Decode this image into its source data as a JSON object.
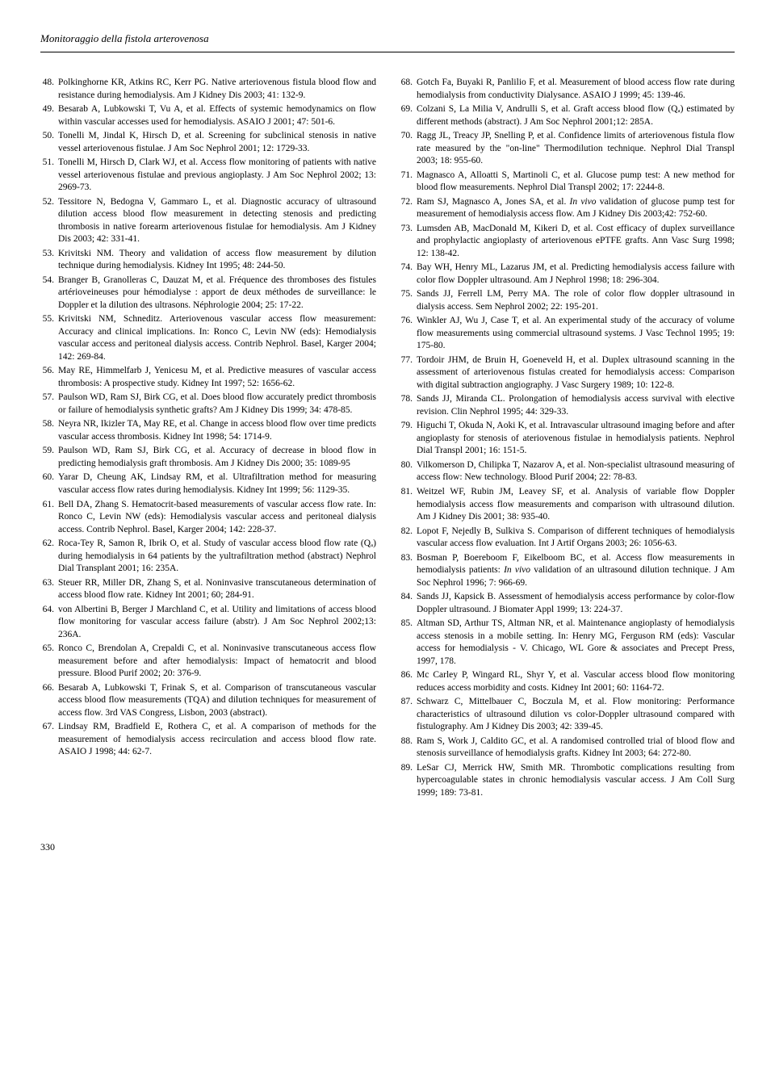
{
  "header_title": "Monitoraggio della fistola arterovenosa",
  "page_number": "330",
  "references_left": [
    {
      "num": "48.",
      "text": "Polkinghorne KR, Atkins RC, Kerr PG. Native arteriovenous fistula blood flow and resistance during hemodialysis. Am J Kidney Dis 2003; 41: 132-9."
    },
    {
      "num": "49.",
      "text": "Besarab A, Lubkowski T, Vu A, et al. Effects of systemic hemodynamics on flow within vascular accesses used for hemodialysis. ASAIO J 2001; 47: 501-6."
    },
    {
      "num": "50.",
      "text": "Tonelli M, Jindal K, Hirsch D, et al. Screening for subclinical stenosis in native vessel arteriovenous fistulae. J Am Soc Nephrol 2001; 12: 1729-33."
    },
    {
      "num": "51.",
      "text": "Tonelli M, Hirsch D, Clark WJ, et al. Access flow monitoring of patients with native vessel arteriovenous fistulae and previous angioplasty. J Am Soc Nephrol 2002; 13: 2969-73."
    },
    {
      "num": "52.",
      "text": "Tessitore N, Bedogna V, Gammaro L, et al. Diagnostic accuracy of ultrasound dilution access blood flow measurement in detecting stenosis and predicting thrombosis in native forearm arteriovenous fistulae for hemodialysis. Am J Kidney Dis 2003; 42: 331-41."
    },
    {
      "num": "53.",
      "text": "Krivitski NM. Theory and validation of access flow measurement by dilution technique during hemodialysis. Kidney Int 1995; 48: 244-50."
    },
    {
      "num": "54.",
      "text": "Branger B, Granolleras C, Dauzat M, et al. Fréquence des thromboses des fistules artérioveineuses pour hémodialyse : apport de deux méthodes de surveillance: le Doppler et la dilution des ultrasons. Néphrologie 2004; 25: 17-22."
    },
    {
      "num": "55.",
      "text": "Krivitski NM, Schneditz. Arteriovenous vascular access flow measurement: Accuracy and clinical implications. In: Ronco C, Levin NW (eds): Hemodialysis vascular access and peritoneal dialysis access. Contrib Nephrol. Basel, Karger 2004; 142: 269-84."
    },
    {
      "num": "56.",
      "text": "May RE, Himmelfarb J, Yenicesu M, et al. Predictive measures of vascular access thrombosis: A prospective study. Kidney Int 1997; 52: 1656-62."
    },
    {
      "num": "57.",
      "text": "Paulson WD, Ram SJ, Birk CG, et al. Does blood flow accurately predict thrombosis or failure of hemodialysis synthetic grafts? Am J Kidney Dis 1999; 34: 478-85."
    },
    {
      "num": "58.",
      "text": "Neyra NR, Ikizler TA, May RE, et al. Change in access blood flow over time predicts vascular access thrombosis. Kidney Int 1998; 54: 1714-9."
    },
    {
      "num": "59.",
      "text": "Paulson WD, Ram SJ, Birk CG, et al. Accuracy of decrease in blood flow in predicting hemodialysis graft thrombosis. Am J Kidney Dis 2000; 35: 1089-95"
    },
    {
      "num": "60.",
      "text": "Yarar D, Cheung AK, Lindsay RM, et al. Ultrafiltration method for measuring vascular access flow rates during hemodialysis. Kidney Int 1999; 56: 1129-35."
    },
    {
      "num": "61.",
      "text": "Bell DA, Zhang S. Hematocrit-based measurements of vascular access flow rate. In: Ronco C, Levin NW (eds): Hemodialysis vascular access and peritoneal dialysis access. Contrib Nephrol. Basel, Karger 2004; 142: 228-37."
    },
    {
      "num": "62.",
      "text": "Roca-Tey R, Samon R, Ibrik O, et al. Study of vascular access blood flow rate (Qₐ) during hemodialysis in 64 patients by the yultrafiltration method (abstract) Nephrol Dial Transplant 2001; 16: 235A."
    },
    {
      "num": "63.",
      "text": "Steuer RR, Miller DR, Zhang S, et al. Noninvasive transcutaneous determination of access blood flow rate. Kidney Int 2001; 60; 284-91."
    },
    {
      "num": "64.",
      "text": "von Albertini B, Berger J Marchland C, et al. Utility and limitations of access blood flow monitoring for vascular access failure (abstr). J Am Soc Nephrol 2002;13: 236A."
    },
    {
      "num": "65.",
      "text": "Ronco C, Brendolan A, Crepaldi C, et al. Noninvasive transcutaneous access flow measurement before and after hemodialysis: Impact of hematocrit and blood pressure. Blood Purif 2002; 20: 376-9."
    },
    {
      "num": "66.",
      "text": "Besarab A, Lubkowski T, Frinak S, et al. Comparison of transcutaneous vascular access blood flow measurements (TQA) and dilution techniques for measurement of access flow. 3rd VAS Congress, Lisbon, 2003 (abstract)."
    },
    {
      "num": "67.",
      "text": "Lindsay RM, Bradfield E, Rothera C, et al. A comparison of methods for the measurement of hemodialysis access recirculation and access blood flow rate. ASAIO J 1998; 44: 62-7."
    }
  ],
  "references_right": [
    {
      "num": "68.",
      "text": "Gotch Fa, Buyaki R, Panlilio F, et al. Measurement of blood access flow rate during hemodialysis from conductivity Dialysance. ASAIO J 1999; 45: 139-46."
    },
    {
      "num": "69.",
      "text": "Colzani S, La Milia V, Andrulli S, et al. Graft access blood flow (Qₐ) estimated by different methods (abstract). J Am Soc Nephrol 2001;12: 285A."
    },
    {
      "num": "70.",
      "text": "Ragg JL, Treacy JP, Snelling P, et al. Confidence limits of arteriovenous fistula flow rate measured by the \"on-line\" Thermodilution technique. Nephrol Dial Transpl 2003; 18: 955-60."
    },
    {
      "num": "71.",
      "text": "Magnasco A, Alloatti S, Martinoli C, et al. Glucose pump test: A new method for blood flow measurements. Nephrol Dial Transpl 2002; 17: 2244-8."
    },
    {
      "num": "72.",
      "text": "Ram SJ, Magnasco A, Jones SA, et al. <i>In vivo</i> validation of glucose pump test for measurement of hemodialysis access flow. Am J Kidney Dis 2003;42: 752-60."
    },
    {
      "num": "73.",
      "text": "Lumsden AB, MacDonald M, Kikeri D, et al. Cost efficacy of duplex surveillance and prophylactic angioplasty of arteriovenous ePTFE grafts. Ann Vasc Surg 1998; 12: 138-42."
    },
    {
      "num": "74.",
      "text": "Bay WH, Henry ML, Lazarus JM, et al. Predicting hemodialysis access failure with color flow Doppler ultrasound. Am J Nephrol 1998; 18: 296-304."
    },
    {
      "num": "75.",
      "text": "Sands JJ, Ferrell LM, Perry MA. The role of color flow doppler ultrasound in dialysis access. Sem Nephrol 2002; 22: 195-201."
    },
    {
      "num": "76.",
      "text": "Winkler AJ, Wu J, Case T, et al. An experimental study of the accuracy of volume flow measurements using commercial ultrasound systems. J Vasc Technol 1995; 19: 175-80."
    },
    {
      "num": "77.",
      "text": "Tordoir JHM, de Bruin H, Goeneveld H, et al. Duplex ultrasound scanning in the assessment of arteriovenous fistulas created for hemodialysis access: Comparison with digital subtraction angiography. J Vasc Surgery 1989; 10: 122-8."
    },
    {
      "num": "78.",
      "text": "Sands JJ, Miranda CL. Prolongation of hemodialysis access survival with elective revision. Clin Nephrol 1995; 44: 329-33."
    },
    {
      "num": "79.",
      "text": "Higuchi T, Okuda N, Aoki K, et al. Intravascular ultrasound imaging before and after angioplasty for stenosis of ateriovenous fistulae in hemodialysis patients. Nephrol Dial Transpl 2001; 16: 151-5."
    },
    {
      "num": "80.",
      "text": "Vilkomerson D, Chilipka T, Nazarov A, et al. Non-specialist ultrasound measuring of access flow: New technology. Blood Purif 2004; 22: 78-83."
    },
    {
      "num": "81.",
      "text": "Weitzel WF, Rubin JM, Leavey SF, et al. Analysis of variable flow Doppler hemodialysis access flow measurements and comparison with ultrasound dilution. Am J Kidney Dis 2001; 38: 935-40."
    },
    {
      "num": "82.",
      "text": "Lopot F, Nejedly B, Sulkiva S. Comparison of different techniques of hemodialysis vascular access flow evaluation. Int J Artif Organs 2003; 26: 1056-63."
    },
    {
      "num": "83.",
      "text": "Bosman P, Boereboom F, Eikelboom BC, et al. Access flow measurements in hemodialysis patients: <i>In vivo</i> validation of an ultrasound dilution technique. J Am Soc Nephrol 1996; 7: 966-69."
    },
    {
      "num": "84.",
      "text": "Sands JJ, Kapsick B. Assessment of hemodialysis access performance by color-flow Doppler ultrasound. J Biomater Appl 1999; 13: 224-37."
    },
    {
      "num": "85.",
      "text": "Altman SD, Arthur TS, Altman NR, et al. Maintenance angioplasty of hemodialysis access stenosis in a mobile setting. In: Henry MG, Ferguson RM (eds): Vascular access for hemodialysis - V. Chicago, WL Gore & associates and Precept Press, 1997, 178."
    },
    {
      "num": "86.",
      "text": "Mc Carley P, Wingard RL, Shyr Y, et al. Vascular access blood flow monitoring reduces access morbidity and costs. Kidney Int 2001; 60: 1164-72."
    },
    {
      "num": "87.",
      "text": "Schwarz C, Mittelbauer C, Boczula M, et al. Flow monitoring: Performance characteristics of ultrasound dilution vs color-Doppler ultrasound compared with fistulography. Am J Kidney Dis 2003; 42: 339-45."
    },
    {
      "num": "88.",
      "text": "Ram S, Work J, Caldito GC, et al. A randomised controlled trial of blood flow and stenosis surveillance of hemodialysis grafts. Kidney Int 2003; 64: 272-80."
    },
    {
      "num": "89.",
      "text": "LeSar CJ, Merrick HW, Smith MR. Thrombotic complications resulting from hypercoagulable states in chronic hemodialysis vascular access. J Am Coll Surg 1999; 189: 73-81."
    }
  ]
}
